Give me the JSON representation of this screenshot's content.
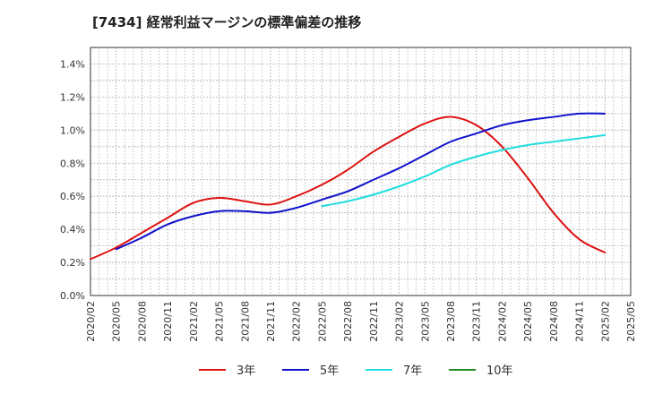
{
  "chart_data": {
    "type": "line",
    "title": "[7434]  経常利益マージンの標準偏差の推移",
    "xlabel": "",
    "ylabel": "",
    "ylim": [
      0,
      1.5
    ],
    "grid": true,
    "legend_position": "bottom",
    "x_ticks": [
      "2020/02",
      "2020/05",
      "2020/08",
      "2020/11",
      "2021/02",
      "2021/05",
      "2021/08",
      "2021/11",
      "2022/02",
      "2022/05",
      "2022/08",
      "2022/11",
      "2023/02",
      "2023/05",
      "2023/08",
      "2023/11",
      "2024/02",
      "2024/05",
      "2024/08",
      "2024/11",
      "2025/02",
      "2025/05"
    ],
    "y_ticks": [
      0,
      0.2,
      0.4,
      0.6,
      0.8,
      1.0,
      1.2,
      1.4
    ],
    "y_tick_labels": [
      "0.0%",
      "0.2%",
      "0.4%",
      "0.6%",
      "0.8%",
      "1.0%",
      "1.2%",
      "1.4%"
    ],
    "series": [
      {
        "name": "3年",
        "color": "#dd1111",
        "x": [
          "2020/02",
          "2020/05",
          "2020/08",
          "2020/11",
          "2021/02",
          "2021/05",
          "2021/08",
          "2021/11",
          "2022/02",
          "2022/05",
          "2022/08",
          "2022/11",
          "2023/02",
          "2023/05",
          "2023/08",
          "2023/11",
          "2024/02",
          "2024/05",
          "2024/08",
          "2024/11",
          "2025/02"
        ],
        "values": [
          0.22,
          0.29,
          0.38,
          0.47,
          0.56,
          0.59,
          0.57,
          0.55,
          0.6,
          0.67,
          0.76,
          0.87,
          0.96,
          1.04,
          1.08,
          1.03,
          0.9,
          0.71,
          0.5,
          0.34,
          0.26
        ]
      },
      {
        "name": "5年",
        "color": "#1111cc",
        "x": [
          "2020/05",
          "2020/08",
          "2020/11",
          "2021/02",
          "2021/05",
          "2021/08",
          "2021/11",
          "2022/02",
          "2022/05",
          "2022/08",
          "2022/11",
          "2023/02",
          "2023/05",
          "2023/08",
          "2023/11",
          "2024/02",
          "2024/05",
          "2024/08",
          "2024/11",
          "2025/02"
        ],
        "values": [
          0.28,
          0.35,
          0.43,
          0.48,
          0.51,
          0.51,
          0.5,
          0.53,
          0.58,
          0.63,
          0.7,
          0.77,
          0.85,
          0.93,
          0.98,
          1.03,
          1.06,
          1.08,
          1.1,
          1.1
        ]
      },
      {
        "name": "7年",
        "color": "#22dddd",
        "x": [
          "2022/05",
          "2022/08",
          "2022/11",
          "2023/02",
          "2023/05",
          "2023/08",
          "2023/11",
          "2024/02",
          "2024/05",
          "2024/08",
          "2024/11",
          "2025/02"
        ],
        "values": [
          0.54,
          0.57,
          0.61,
          0.66,
          0.72,
          0.79,
          0.84,
          0.88,
          0.91,
          0.93,
          0.95,
          0.97
        ]
      },
      {
        "name": "10年",
        "color": "#228822",
        "x": [],
        "values": []
      }
    ]
  }
}
